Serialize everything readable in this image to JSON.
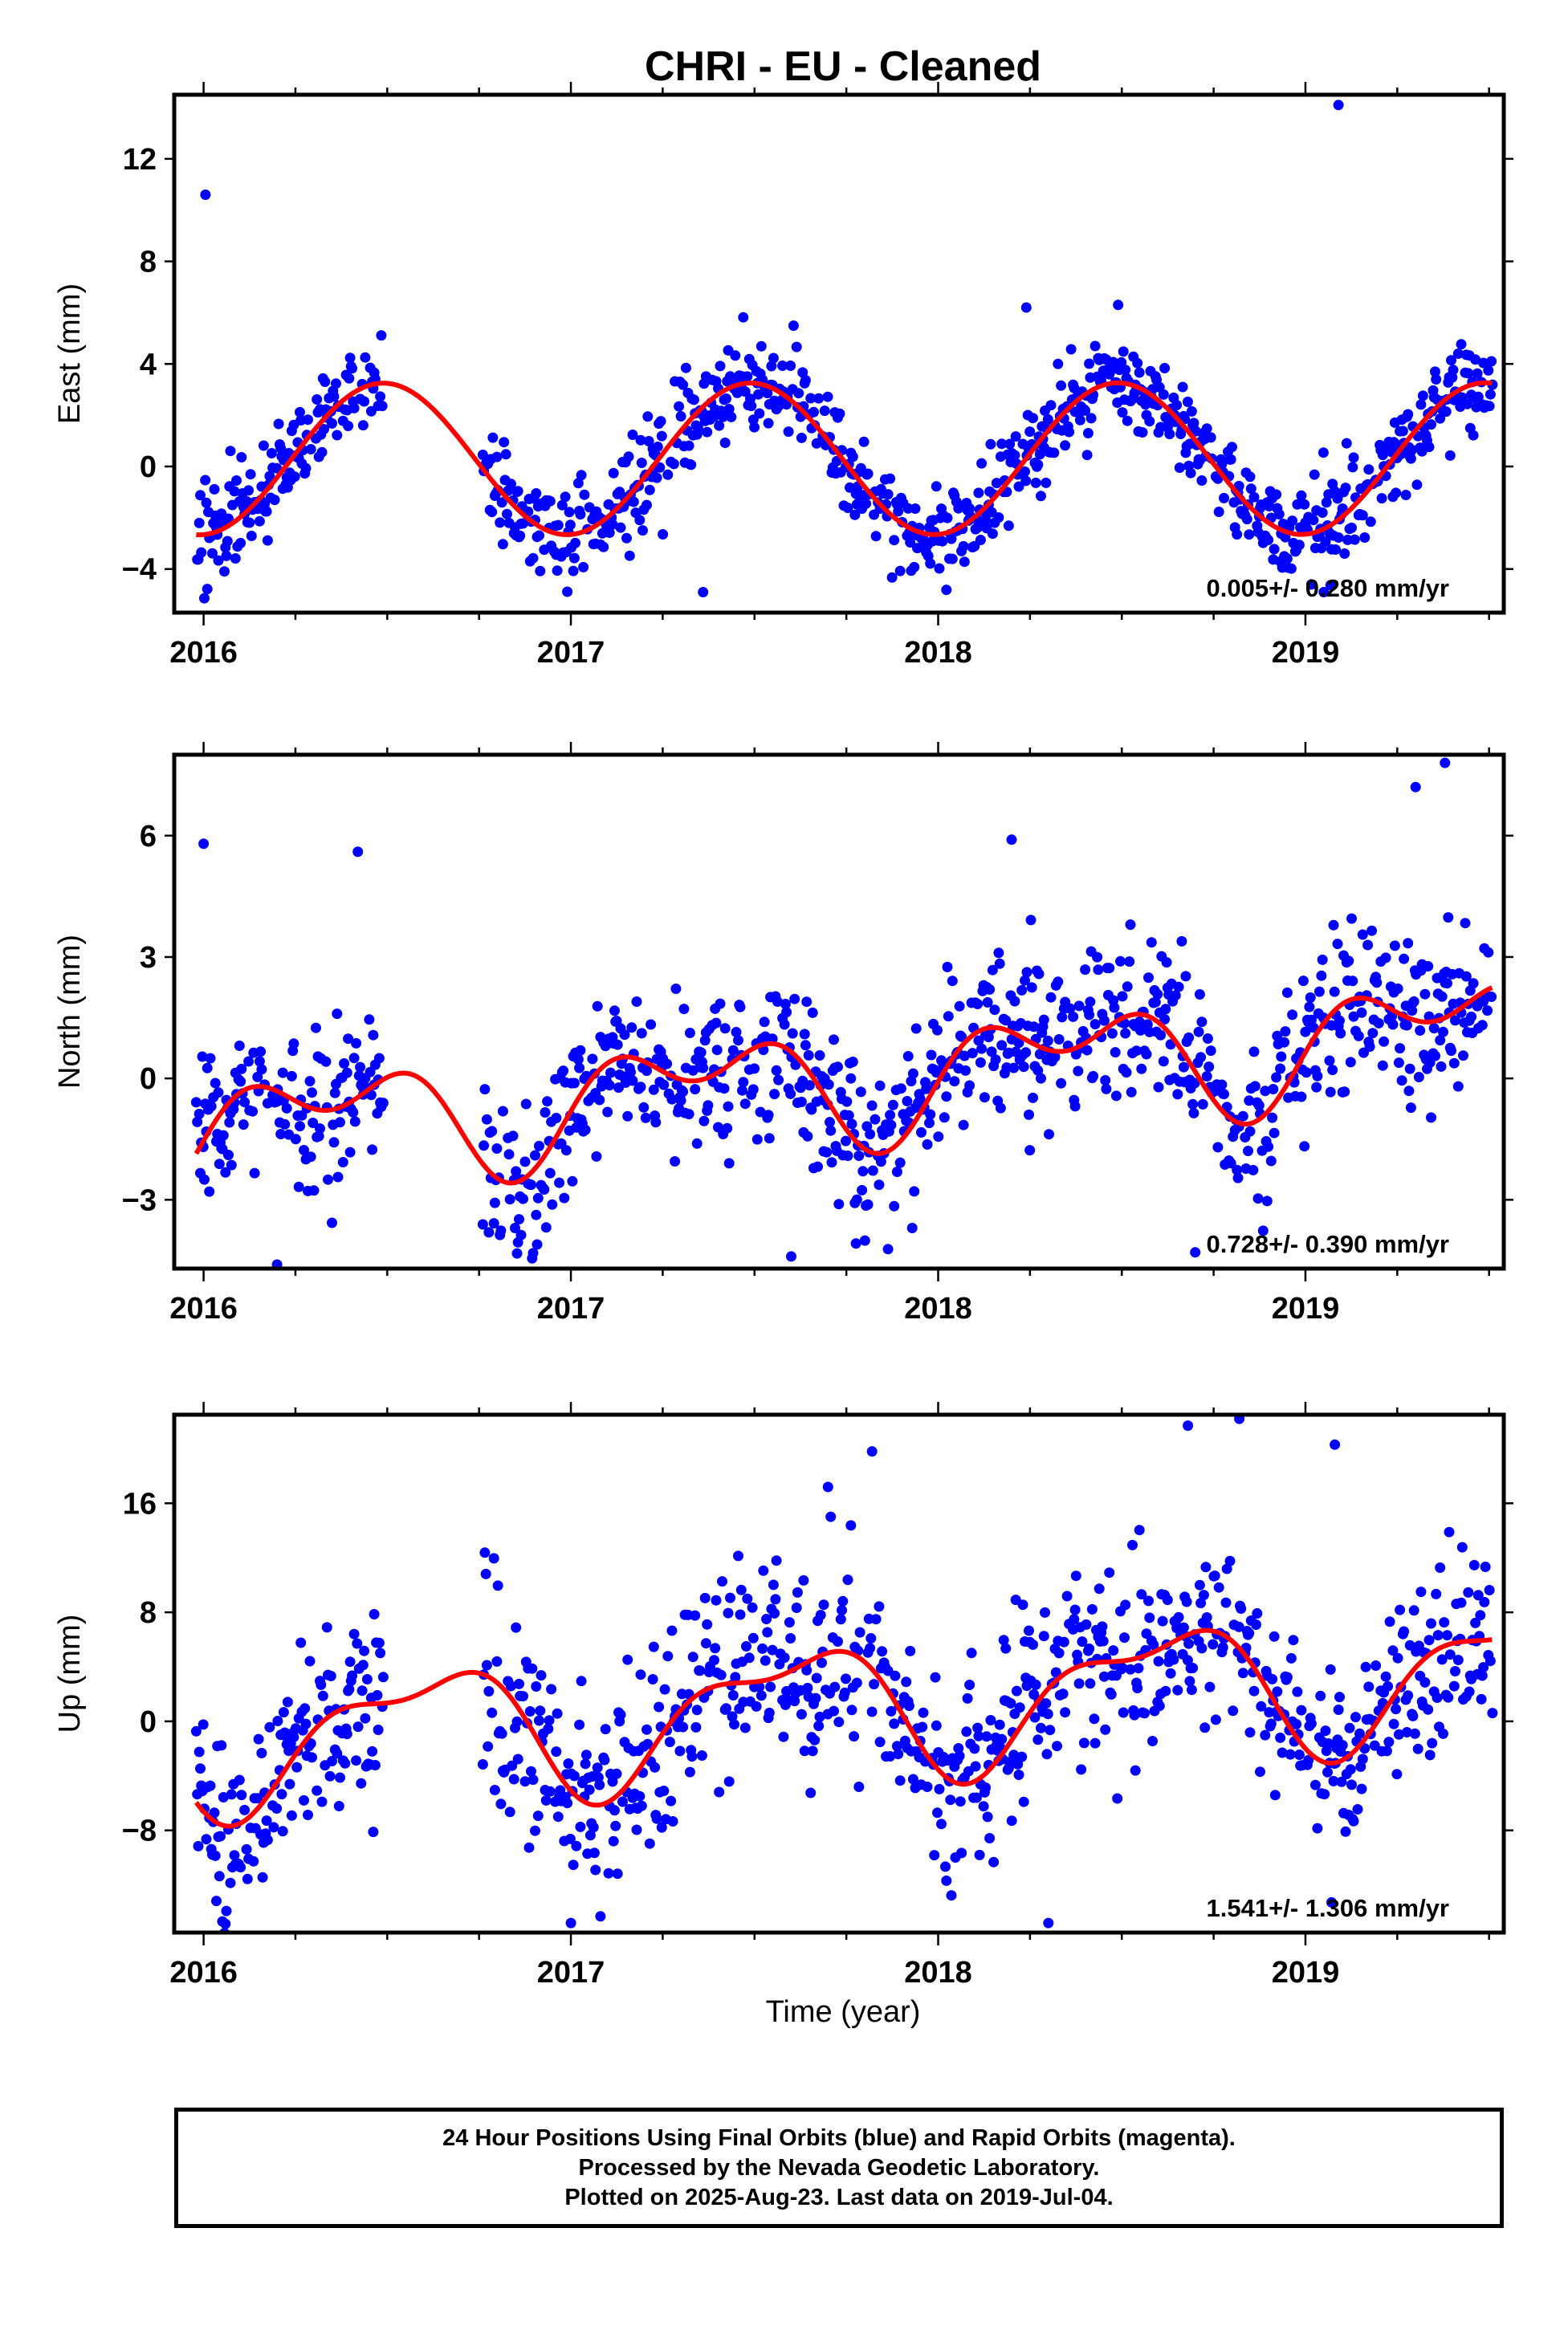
{
  "title": "CHRI  - EU - Cleaned",
  "x_axis_label": "Time (year)",
  "footer": {
    "line1": "24 Hour Positions Using Final Orbits (blue) and Rapid Orbits (magenta).",
    "line2": "Processed by the Nevada Geodetic Laboratory.",
    "line3": "Plotted on 2025-Aug-23. Last data on 2019-Jul-04."
  },
  "colors": {
    "points": "#0000ff",
    "fit": "#ff0000",
    "frame": "#000000"
  },
  "chart_data": [
    {
      "type": "scatter",
      "component": "east",
      "ylabel": "East (mm)",
      "xlim": [
        2015.92,
        2019.54
      ],
      "ylim": [
        -5.7,
        14.5
      ],
      "yticks": [
        -4,
        0,
        4,
        8,
        12
      ],
      "xticks": [
        2016,
        2017,
        2018,
        2019
      ],
      "rate_text": "0.005+/- 0.280 mm/yr",
      "data_span": [
        2015.98,
        2019.51
      ],
      "gaps": [
        [
          2016.49,
          2016.76
        ]
      ],
      "model": {
        "offset": 0.3,
        "trend": 0.005,
        "annual_cos": -2.95,
        "annual_sin": 0.2,
        "semi_cos": 0.0,
        "semi_sin": 0.0,
        "ref_year": 2017.7
      },
      "noise_sd": 0.95,
      "outliers": [
        [
          2016.005,
          10.6
        ],
        [
          2019.09,
          14.1
        ],
        [
          2018.24,
          6.2
        ],
        [
          2018.49,
          6.3
        ],
        [
          2017.36,
          -4.9
        ],
        [
          2019.05,
          -4.9
        ]
      ]
    },
    {
      "type": "scatter",
      "component": "north",
      "ylabel": "North (mm)",
      "xlim": [
        2015.92,
        2019.54
      ],
      "ylim": [
        -4.7,
        8.0
      ],
      "yticks": [
        -3,
        0,
        3,
        6
      ],
      "xticks": [
        2016,
        2017,
        2018,
        2019
      ],
      "rate_text": "0.728+/- 0.390 mm/yr",
      "data_span": [
        2015.98,
        2019.51
      ],
      "gaps": [
        [
          2016.49,
          2016.76
        ]
      ],
      "model": {
        "offset": -0.05,
        "trend": 0.728,
        "annual_cos": -0.6,
        "annual_sin": 0.9,
        "semi_cos": 0.35,
        "semi_sin": 0.75,
        "ref_year": 2017.7
      },
      "noise_sd": 1.05,
      "outliers": [
        [
          2016.0,
          5.8
        ],
        [
          2016.42,
          5.6
        ],
        [
          2018.2,
          5.9
        ],
        [
          2019.3,
          7.2
        ],
        [
          2019.38,
          7.8
        ],
        [
          2016.2,
          -4.6
        ],
        [
          2017.6,
          -4.4
        ],
        [
          2018.7,
          -4.3
        ]
      ]
    },
    {
      "type": "scatter",
      "component": "up",
      "ylabel": "Up (mm)",
      "xlim": [
        2015.92,
        2019.54
      ],
      "ylim": [
        -15.5,
        22.5
      ],
      "yticks": [
        -8,
        0,
        8,
        16
      ],
      "xticks": [
        2016,
        2017,
        2018,
        2019
      ],
      "rate_text": "1.541+/- 1.306 mm/yr",
      "data_span": [
        2015.98,
        2019.51
      ],
      "gaps": [
        [
          2016.49,
          2016.76
        ]
      ],
      "model": {
        "offset": 1.0,
        "trend": 1.541,
        "annual_cos": -3.6,
        "annual_sin": -2.6,
        "semi_cos": -1.4,
        "semi_sin": -1.2,
        "ref_year": 2017.7
      },
      "noise_sd": 3.6,
      "outliers": [
        [
          2017.82,
          19.8
        ],
        [
          2018.68,
          21.7
        ],
        [
          2018.82,
          22.2
        ],
        [
          2019.08,
          20.3
        ],
        [
          2017.0,
          -14.8
        ],
        [
          2018.3,
          -14.8
        ],
        [
          2017.7,
          17.2
        ]
      ]
    }
  ]
}
